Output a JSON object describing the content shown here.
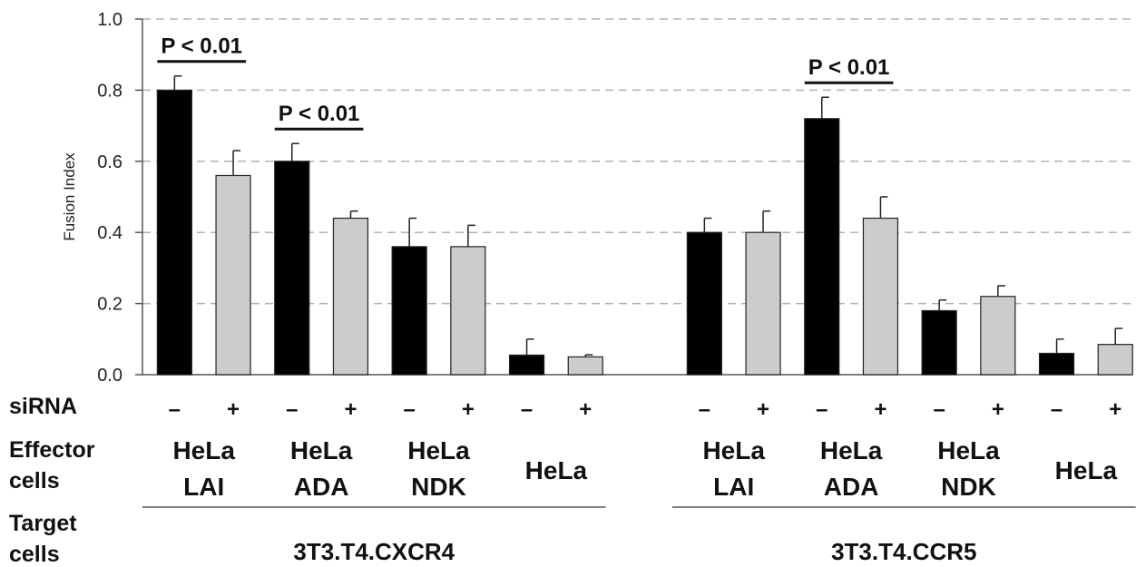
{
  "chart_data": {
    "type": "bar",
    "ylabel": "Fusion Index",
    "ylim": [
      0,
      1.0
    ],
    "yticks": [
      "0.0",
      "0.2",
      "0.4",
      "0.6",
      "0.8",
      "1.0"
    ],
    "grid": "horizontal-dashed",
    "row_labels": {
      "sirna": "siRNA",
      "effector_line1": "Effector",
      "effector_line2": "cells",
      "target_line1": "Target",
      "target_line2": "cells"
    },
    "groups": [
      {
        "target": "3T3.T4.CXCR4",
        "categories": [
          {
            "line1": "HeLa",
            "line2": "LAI",
            "bars": [
              {
                "sirna": "–",
                "value": 0.8,
                "error": 0.04
              },
              {
                "sirna": "+",
                "value": 0.56,
                "error": 0.07
              }
            ]
          },
          {
            "line1": "HeLa",
            "line2": "ADA",
            "bars": [
              {
                "sirna": "–",
                "value": 0.6,
                "error": 0.05
              },
              {
                "sirna": "+",
                "value": 0.44,
                "error": 0.02
              }
            ]
          },
          {
            "line1": "HeLa",
            "line2": "NDK",
            "bars": [
              {
                "sirna": "–",
                "value": 0.36,
                "error": 0.08
              },
              {
                "sirna": "+",
                "value": 0.36,
                "error": 0.06
              }
            ]
          },
          {
            "line1": "HeLa",
            "line2": "",
            "bars": [
              {
                "sirna": "–",
                "value": 0.055,
                "error": 0.045
              },
              {
                "sirna": "+",
                "value": 0.05,
                "error": 0.006
              }
            ]
          }
        ]
      },
      {
        "target": "3T3.T4.CCR5",
        "categories": [
          {
            "line1": "HeLa",
            "line2": "LAI",
            "bars": [
              {
                "sirna": "–",
                "value": 0.4,
                "error": 0.04
              },
              {
                "sirna": "+",
                "value": 0.4,
                "error": 0.06
              }
            ]
          },
          {
            "line1": "HeLa",
            "line2": "ADA",
            "bars": [
              {
                "sirna": "–",
                "value": 0.72,
                "error": 0.06
              },
              {
                "sirna": "+",
                "value": 0.44,
                "error": 0.06
              }
            ]
          },
          {
            "line1": "HeLa",
            "line2": "NDK",
            "bars": [
              {
                "sirna": "–",
                "value": 0.18,
                "error": 0.03
              },
              {
                "sirna": "+",
                "value": 0.22,
                "error": 0.03
              }
            ]
          },
          {
            "line1": "HeLa",
            "line2": "",
            "bars": [
              {
                "sirna": "–",
                "value": 0.06,
                "error": 0.04
              },
              {
                "sirna": "+",
                "value": 0.085,
                "error": 0.045
              }
            ]
          }
        ]
      }
    ],
    "annotations": [
      {
        "text": "P < 0.01",
        "group": 0,
        "category": 0
      },
      {
        "text": "P < 0.01",
        "group": 0,
        "category": 1
      },
      {
        "text": "P < 0.01",
        "group": 1,
        "category": 1
      }
    ],
    "colors": {
      "minus": "#000000",
      "plus": "#cccccc",
      "grid": "#b3b3b3",
      "axis": "#555555"
    }
  }
}
